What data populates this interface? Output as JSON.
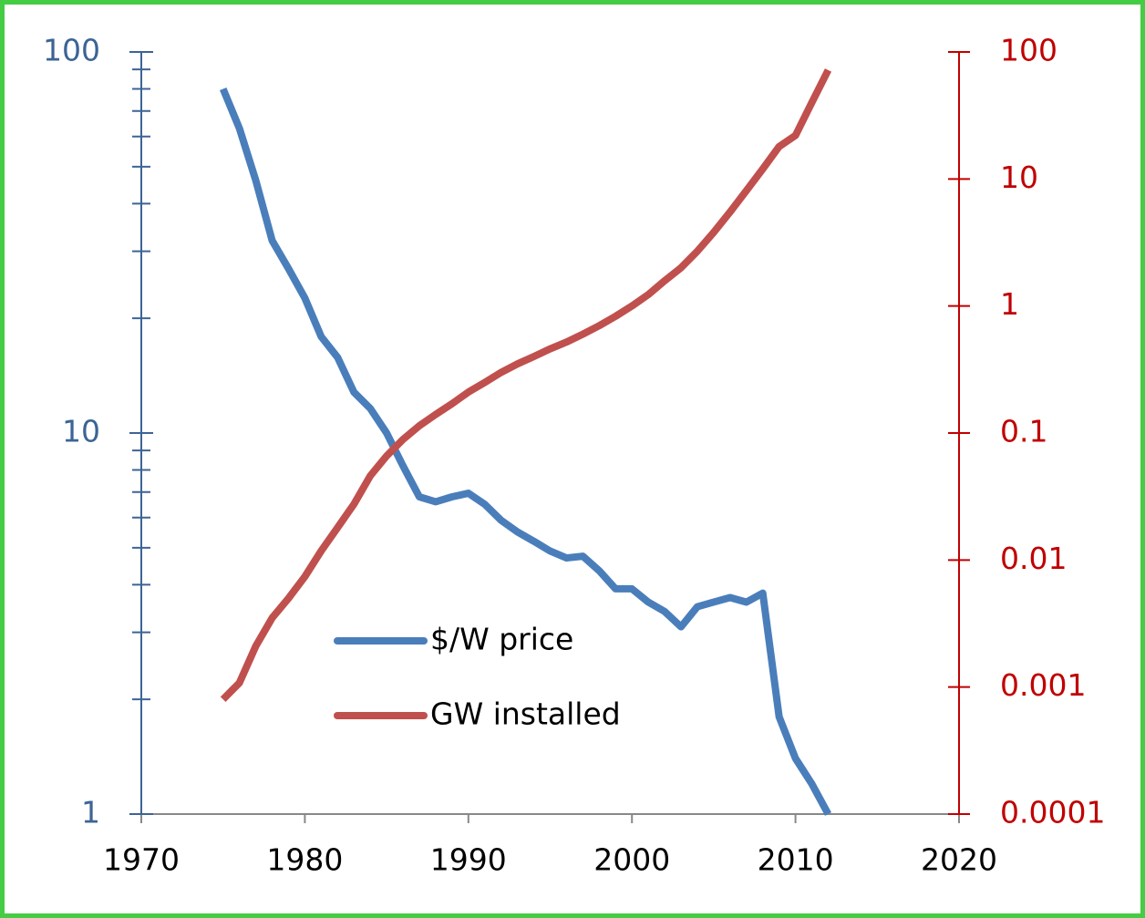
{
  "chart_data": {
    "type": "line",
    "x": [
      1975,
      1976,
      1977,
      1978,
      1979,
      1980,
      1981,
      1982,
      1983,
      1984,
      1985,
      1986,
      1987,
      1988,
      1989,
      1990,
      1991,
      1992,
      1993,
      1994,
      1995,
      1996,
      1997,
      1998,
      1999,
      2000,
      2001,
      2002,
      2003,
      2004,
      2005,
      2006,
      2007,
      2008,
      2009,
      2010,
      2011,
      2012
    ],
    "series": [
      {
        "name": "$/W price",
        "color": "#4a7ebb",
        "axis": "y",
        "values": [
          80,
          63,
          46,
          32,
          27,
          22.6,
          17.9,
          15.8,
          12.8,
          11.6,
          10,
          8.2,
          6.8,
          6.6,
          6.8,
          6.95,
          6.5,
          5.9,
          5.5,
          5.2,
          4.9,
          4.7,
          4.75,
          4.35,
          3.9,
          3.9,
          3.6,
          3.4,
          3.1,
          3.5,
          3.6,
          3.7,
          3.6,
          3.8,
          1.8,
          1.4,
          1.2,
          1.0
        ]
      },
      {
        "name": "GW installed",
        "color": "#c0504d",
        "axis": "y2",
        "values": [
          0.0008,
          0.00108,
          0.0021,
          0.0035,
          0.005,
          0.0074,
          0.0118,
          0.018,
          0.0275,
          0.046,
          0.066,
          0.089,
          0.114,
          0.14,
          0.17,
          0.21,
          0.25,
          0.3,
          0.35,
          0.4,
          0.46,
          0.52,
          0.6,
          0.7,
          0.83,
          1.0,
          1.23,
          1.58,
          2.0,
          2.7,
          3.8,
          5.5,
          8.1,
          12,
          18,
          22,
          40,
          72
        ]
      }
    ],
    "xlim": [
      1970,
      2020
    ],
    "xticks": [
      1970,
      1980,
      1990,
      2000,
      2010,
      2020
    ],
    "ylim": [
      1,
      100
    ],
    "yticks": [
      1,
      10,
      100
    ],
    "yminorticks": [
      2,
      3,
      4,
      5,
      6,
      7,
      8,
      9,
      20,
      30,
      40,
      50,
      60,
      70,
      80,
      90
    ],
    "y2lim": [
      0.0001,
      100
    ],
    "y2ticks": [
      0.0001,
      0.001,
      0.01,
      0.1,
      1,
      10,
      100
    ],
    "ylog": true,
    "y2log": true,
    "yaxis_color": "#3c6496",
    "y2axis_color": "#c00000",
    "legend": "lower center"
  }
}
